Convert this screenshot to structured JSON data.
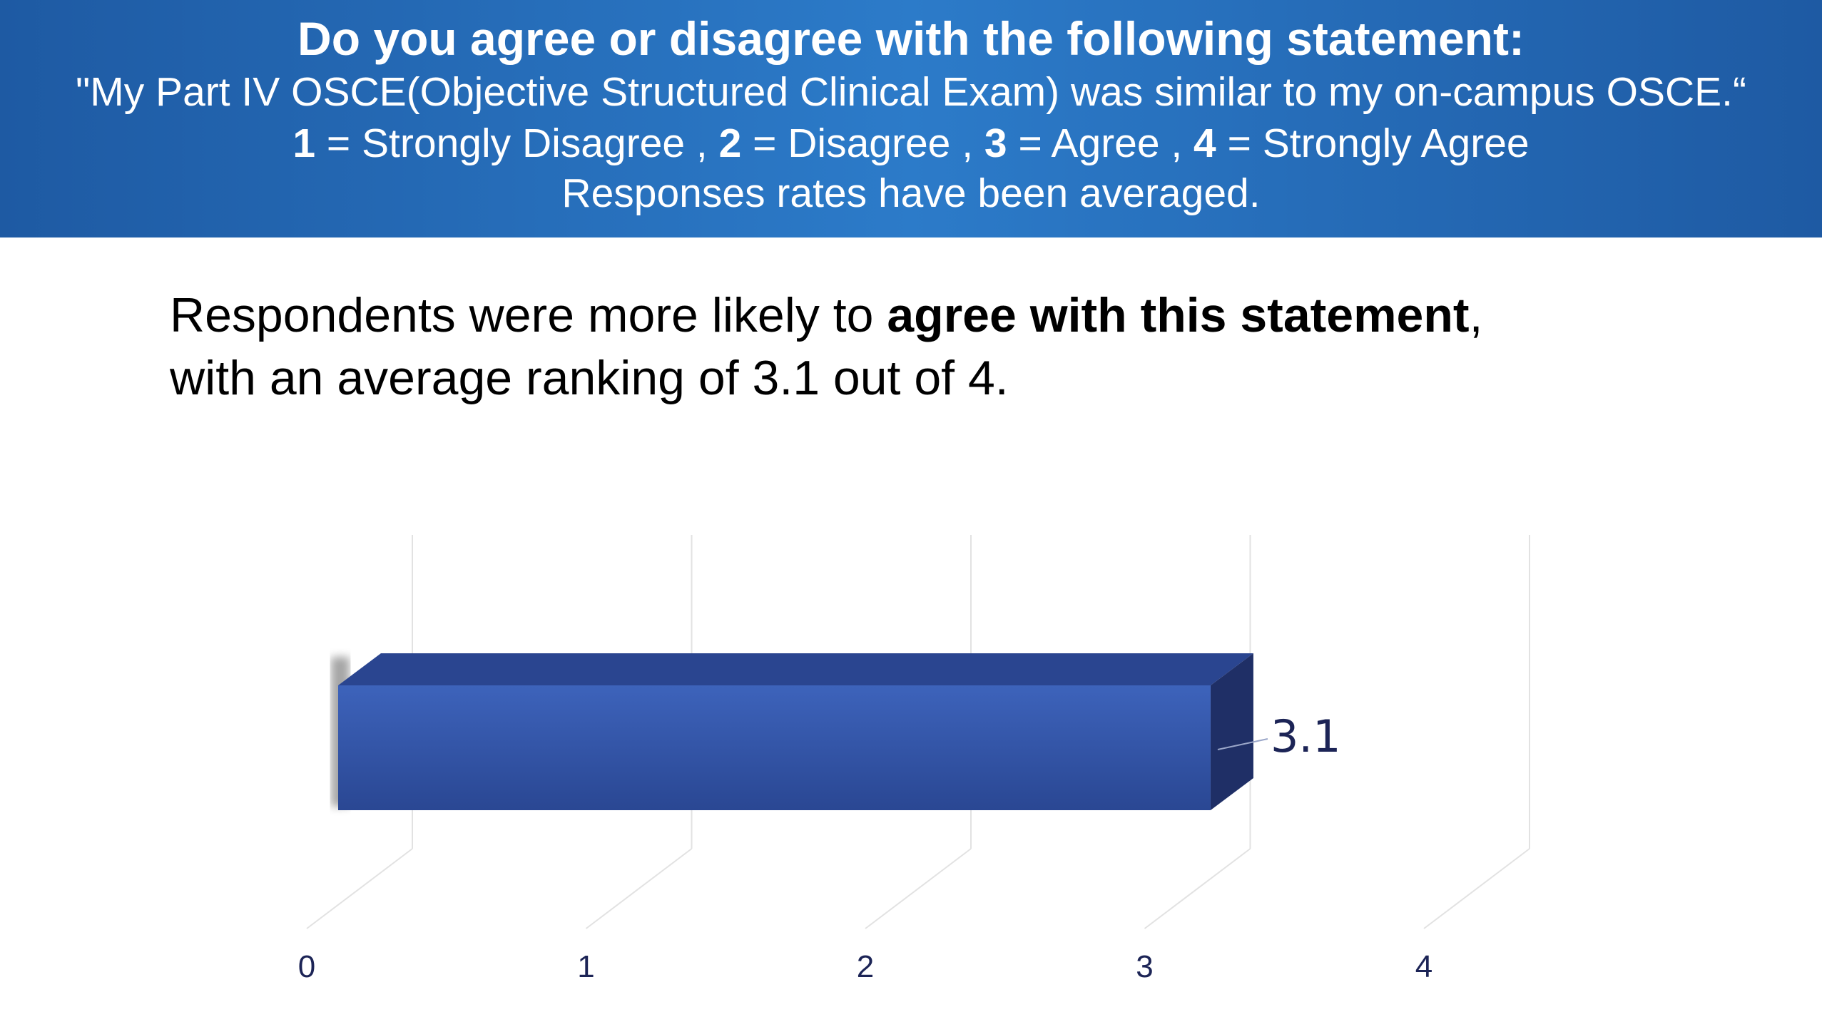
{
  "header": {
    "question": "Do you agree or disagree with the following statement:",
    "statement": "\"My Part IV OSCE(Objective Structured Clinical Exam) was similar to my on-campus OSCE.“",
    "scale": [
      {
        "num": "1",
        "text": " = Strongly Disagree , "
      },
      {
        "num": "2",
        "text": " = Disagree , "
      },
      {
        "num": "3",
        "text": " = Agree , "
      },
      {
        "num": "4",
        "text": " = Strongly Agree"
      }
    ],
    "note": "Responses rates have been averaged."
  },
  "summary": {
    "part1": "Respondents were more likely to ",
    "bold": "agree with this statement",
    "part2": ",",
    "line2": "with an average ranking of 3.1 out of 4."
  },
  "chart_data": {
    "type": "bar",
    "orientation": "horizontal",
    "three_d": true,
    "categories": [
      ""
    ],
    "values": [
      3.1
    ],
    "data_labels": [
      "3.1"
    ],
    "xlim": [
      0,
      4
    ],
    "xticks": [
      "0",
      "1",
      "2",
      "3",
      "4"
    ],
    "grid": true,
    "colors": {
      "bar_front": "#3a5fb5",
      "bar_top": "#2a4590",
      "bar_side": "#1f2f66",
      "label": "#1c2456",
      "grid": "#e2e2e2"
    }
  }
}
